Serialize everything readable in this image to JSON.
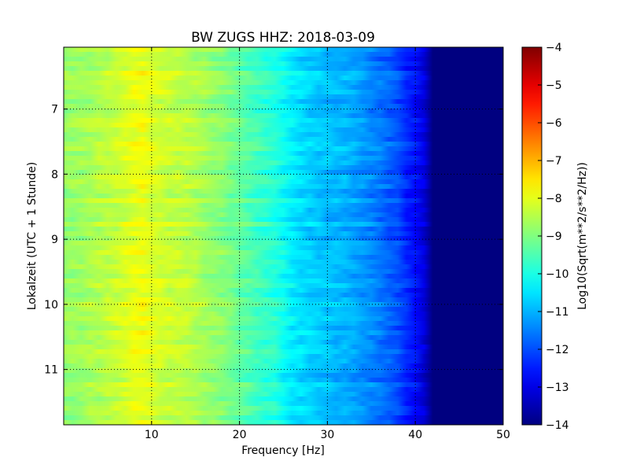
{
  "chart_data": {
    "type": "heatmap",
    "title": "BW ZUGS HHZ: 2018-03-09",
    "xlabel": "Frequency [Hz]",
    "ylabel": "Lokalzeit (UTC + 1 Stunde)",
    "xlim": [
      0,
      50
    ],
    "ylim": [
      6.05,
      11.85
    ],
    "y_inverted": true,
    "x_ticks": [
      10,
      20,
      30,
      40,
      50
    ],
    "x_tick_labels": [
      "10",
      "20",
      "30",
      "40",
      "50"
    ],
    "y_ticks": [
      7,
      8,
      9,
      10,
      11
    ],
    "y_tick_labels": [
      "7",
      "8",
      "9",
      "10",
      "11"
    ],
    "grid": true,
    "colorbar": {
      "label": "Log10(Sqrt(m**2/s**2/Hz))",
      "range": [
        -14,
        -4
      ],
      "ticks": [
        -4,
        -5,
        -6,
        -7,
        -8,
        -9,
        -10,
        -11,
        -12,
        -13,
        -14
      ],
      "tick_labels": [
        "−4",
        "−5",
        "−6",
        "−7",
        "−8",
        "−9",
        "−10",
        "−11",
        "−12",
        "−13",
        "−14"
      ],
      "colormap": "jet"
    },
    "frequency_profile": {
      "x": [
        0,
        2,
        4,
        6,
        8,
        9,
        10,
        12,
        14,
        16,
        18,
        20,
        22,
        24,
        26,
        28,
        30,
        32,
        34,
        36,
        38,
        39,
        40,
        41,
        41.5,
        42,
        45,
        50
      ],
      "values": [
        -8.8,
        -8.7,
        -8.5,
        -8.3,
        -8.0,
        -7.9,
        -8.1,
        -8.3,
        -8.4,
        -8.7,
        -8.9,
        -9.3,
        -9.6,
        -9.9,
        -10.4,
        -10.7,
        -10.9,
        -11.0,
        -11.3,
        -11.6,
        -12.0,
        -12.4,
        -12.7,
        -13.1,
        -13.6,
        -14.0,
        -14.0,
        -14.0
      ]
    }
  }
}
